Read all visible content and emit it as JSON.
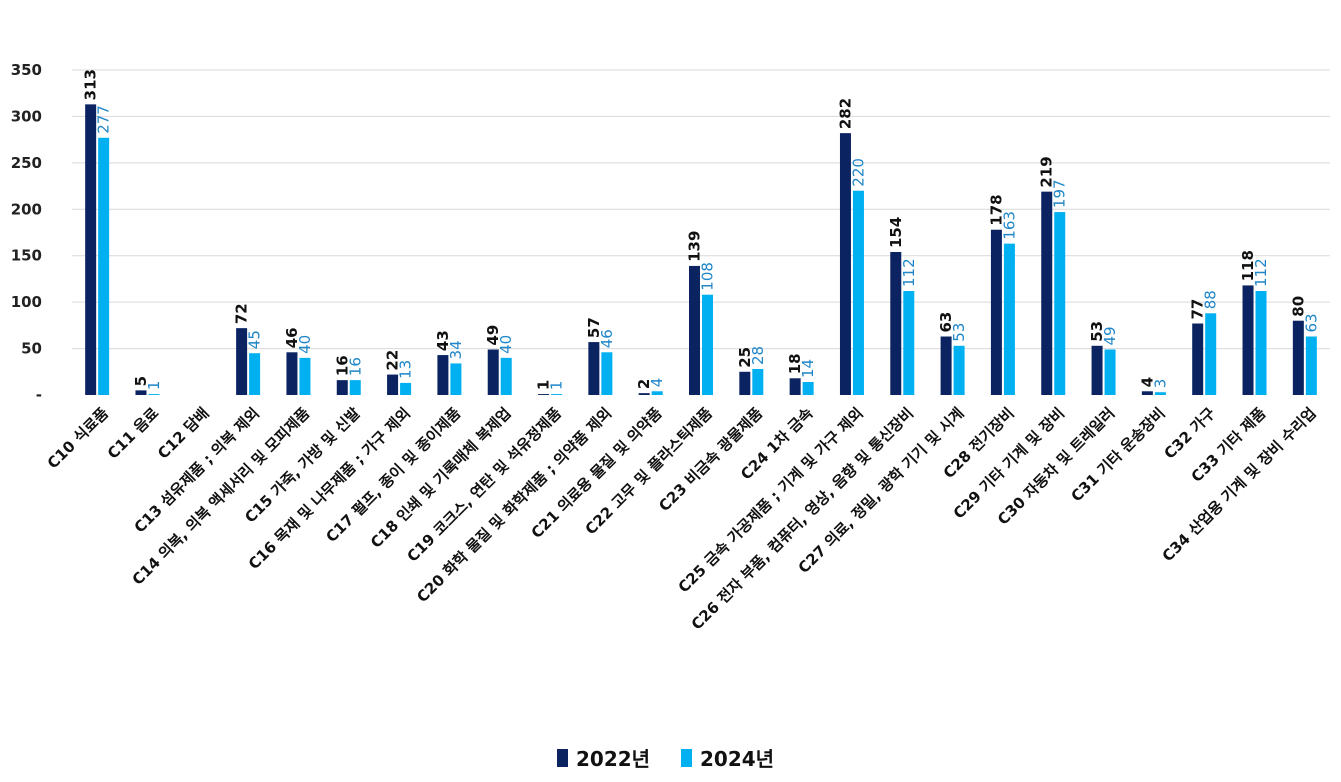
{
  "chart_data": {
    "type": "bar",
    "title": "",
    "xlabel": "",
    "ylabel": "",
    "ylim": [
      0,
      350
    ],
    "yticks": [
      0,
      50,
      100,
      150,
      200,
      250,
      300,
      350
    ],
    "ytick_labels": [
      "-",
      "50",
      "100",
      "150",
      "200",
      "250",
      "300",
      "350"
    ],
    "grid": true,
    "legend_position": "bottom",
    "categories": [
      "C10 식료품",
      "C11 음료",
      "C12 담배",
      "C13 섬유제품 ; 의복 제외",
      "C14 의복, 의복 액세서리 및 모피제품",
      "C15 가죽, 가방 및 신발",
      "C16 목재 및 나무제품 ; 가구 제외",
      "C17 펄프, 종이 및 종이제품",
      "C18 인쇄 및 기록매체 복제업",
      "C19 코크스, 연탄 및 석유정제품",
      "C20 화학 물질 및 화학제품 ; 의약품 제외",
      "C21 의료용 물질 및 의약품",
      "C22 고무 및 플라스틱제품",
      "C23 비금속 광물제품",
      "C24 1차 금속",
      "C25 금속 가공제품 ; 기계 및 가구 제외",
      "C26 전자 부품, 컴퓨터, 영상, 음향 및 통신장비",
      "C27 의료, 정밀, 광학 기기 및 시계",
      "C28 전기장비",
      "C29 기타 기계 및 장비",
      "C30 자동차 및 트레일러",
      "C31 기타 운송장비",
      "C32 가구",
      "C33 기타 제품",
      "C34 산업용 기계 및 장비 수리업"
    ],
    "series": [
      {
        "name": "2022년",
        "color": "#0b2461",
        "values": [
          313,
          5,
          null,
          72,
          46,
          16,
          22,
          43,
          49,
          1,
          57,
          2,
          139,
          25,
          18,
          282,
          154,
          63,
          178,
          219,
          53,
          4,
          77,
          118,
          80
        ]
      },
      {
        "name": "2024년",
        "color": "#00b0f0",
        "values": [
          277,
          1,
          null,
          45,
          40,
          16,
          13,
          34,
          40,
          1,
          46,
          4,
          108,
          28,
          14,
          220,
          112,
          53,
          163,
          197,
          49,
          3,
          88,
          112,
          63
        ]
      }
    ]
  }
}
